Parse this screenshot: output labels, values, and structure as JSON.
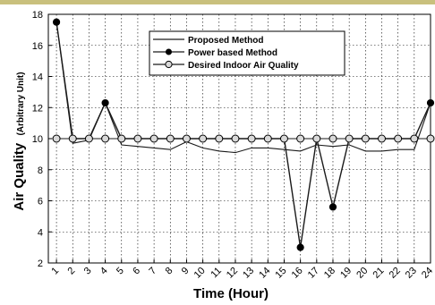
{
  "chart_data": {
    "type": "line",
    "title": "",
    "xlabel": "Time (Hour)",
    "ylabel": "Air Quality",
    "ylabel_unit": "(Arbitrary Unit)",
    "x": [
      1,
      2,
      3,
      4,
      5,
      6,
      7,
      8,
      9,
      10,
      11,
      12,
      13,
      14,
      15,
      16,
      17,
      18,
      19,
      20,
      21,
      22,
      23,
      24
    ],
    "x_tick_labels": [
      "1",
      "2",
      "3",
      "4",
      "5",
      "6",
      "7",
      "8",
      "9",
      "10",
      "11",
      "12",
      "13",
      "14",
      "15",
      "16",
      "17",
      "18",
      "19",
      "20",
      "21",
      "22",
      "23",
      "24"
    ],
    "xlim": [
      0.5,
      24
    ],
    "ylim": [
      2,
      18
    ],
    "y_ticks": [
      2,
      4,
      6,
      8,
      10,
      12,
      14,
      16,
      18
    ],
    "grid": true,
    "legend_position": "top-center",
    "series": [
      {
        "name": "Proposed Method",
        "marker": "none",
        "color": "#1a1a1a",
        "values": [
          17.5,
          9.7,
          9.9,
          12.3,
          9.6,
          9.5,
          9.4,
          9.3,
          9.8,
          9.4,
          9.2,
          9.1,
          9.4,
          9.4,
          9.3,
          9.2,
          9.6,
          9.5,
          9.6,
          9.2,
          9.2,
          9.3,
          9.3,
          12.3
        ]
      },
      {
        "name": "Power based Method",
        "marker": "filled-circle",
        "color": "#1a1a1a",
        "values": [
          17.5,
          10,
          10,
          12.3,
          10,
          10,
          10,
          10,
          10,
          10,
          10,
          10,
          10,
          10,
          10,
          3,
          10,
          5.6,
          10,
          10,
          10,
          10,
          10,
          12.3
        ]
      },
      {
        "name": "Desired Indoor Air Quality",
        "marker": "open-circle",
        "color": "#1a1a1a",
        "values": [
          10,
          10,
          10,
          10,
          10,
          10,
          10,
          10,
          10,
          10,
          10,
          10,
          10,
          10,
          10,
          10,
          10,
          10,
          10,
          10,
          10,
          10,
          10,
          10
        ]
      }
    ]
  }
}
